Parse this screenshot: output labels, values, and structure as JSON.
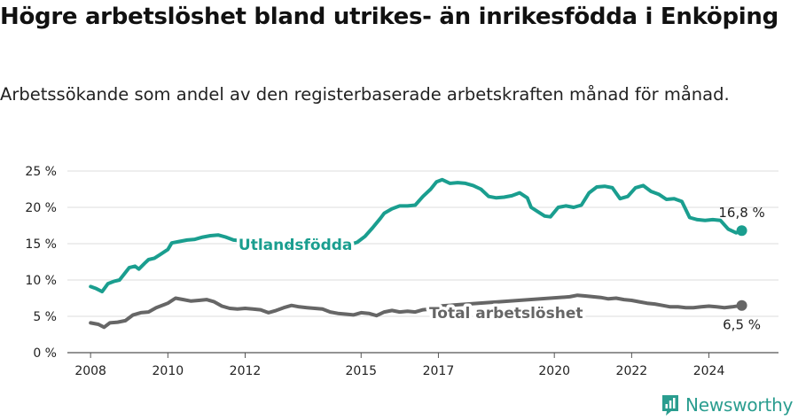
{
  "header": {
    "title": "Högre arbetslöshet bland utrikes- än inrikesfödda i Enköping",
    "subtitle": "Arbetssökande som andel av den registerbaserade arbetskraften månad för månad."
  },
  "brand": {
    "name": "Newsworthy",
    "color": "#2a9d8f"
  },
  "chart_data": {
    "type": "line",
    "title": "Högre arbetslöshet bland utrikes- än inrikesfödda i Enköping",
    "subtitle": "Arbetssökande som andel av den registerbaserade arbetskraften månad för månad.",
    "xlabel": "",
    "ylabel": "",
    "x_range": [
      2007.4,
      2025.8
    ],
    "ylim": [
      0,
      25
    ],
    "y_ticks": [
      0,
      5,
      10,
      15,
      20,
      25
    ],
    "y_tick_labels": [
      "0 %",
      "5 %",
      "10 %",
      "15 %",
      "20 %",
      "25 %"
    ],
    "x_ticks": [
      2008,
      2010,
      2012,
      2015,
      2017,
      2020,
      2022,
      2024
    ],
    "x_tick_labels": [
      "2008",
      "2010",
      "2012",
      "2015",
      "2017",
      "2020",
      "2022",
      "2024"
    ],
    "grid": "horizontal",
    "legend": "inline labels",
    "series": [
      {
        "name": "Utlandsfödda",
        "color": "#1a9e8f",
        "end_label": "16,8 %",
        "x": [
          2008.0,
          2008.15,
          2008.3,
          2008.45,
          2008.6,
          2008.75,
          2009.0,
          2009.15,
          2009.25,
          2009.4,
          2009.5,
          2009.65,
          2009.8,
          2010.0,
          2010.1,
          2010.3,
          2010.5,
          2010.7,
          2010.9,
          2011.1,
          2011.3,
          2011.5,
          2011.7,
          2011.9,
          2012.1,
          2012.3,
          2012.5,
          2014.2,
          2014.45,
          2014.9,
          2015.1,
          2015.3,
          2015.5,
          2015.6,
          2015.8,
          2016.0,
          2016.2,
          2016.4,
          2016.6,
          2016.8,
          2016.95,
          2017.1,
          2017.3,
          2017.5,
          2017.7,
          2017.9,
          2018.1,
          2018.3,
          2018.5,
          2018.7,
          2018.9,
          2019.1,
          2019.3,
          2019.4,
          2019.6,
          2019.75,
          2019.9,
          2020.1,
          2020.3,
          2020.5,
          2020.7,
          2020.9,
          2021.1,
          2021.3,
          2021.5,
          2021.7,
          2021.9,
          2022.1,
          2022.3,
          2022.5,
          2022.7,
          2022.9,
          2023.1,
          2023.3,
          2023.5,
          2023.7,
          2023.9,
          2024.1,
          2024.3,
          2024.5,
          2024.7,
          2024.85
        ],
        "y": [
          9.1,
          8.8,
          8.4,
          9.5,
          9.8,
          10.0,
          11.7,
          11.9,
          11.5,
          12.3,
          12.8,
          13.0,
          13.5,
          14.2,
          15.1,
          15.3,
          15.5,
          15.6,
          15.9,
          16.1,
          16.2,
          15.9,
          15.5,
          15.4,
          15.3,
          15.1,
          15.2,
          14.2,
          14.4,
          15.2,
          16.0,
          17.2,
          18.5,
          19.2,
          19.8,
          20.2,
          20.2,
          20.3,
          21.5,
          22.5,
          23.5,
          23.8,
          23.3,
          23.4,
          23.3,
          23.0,
          22.5,
          21.5,
          21.3,
          21.4,
          21.6,
          22.0,
          21.3,
          20.0,
          19.3,
          18.8,
          18.7,
          20.0,
          20.2,
          20.0,
          20.3,
          22.0,
          22.8,
          22.9,
          22.7,
          21.2,
          21.5,
          22.7,
          23.0,
          22.2,
          21.8,
          21.1,
          21.2,
          20.8,
          18.6,
          18.3,
          18.2,
          18.3,
          18.2,
          17.0,
          16.5,
          16.8
        ]
      },
      {
        "name": "Total arbetslöshet",
        "color": "#666666",
        "end_label": "6,5 %",
        "x": [
          2008.0,
          2008.2,
          2008.35,
          2008.5,
          2008.7,
          2008.9,
          2009.1,
          2009.3,
          2009.5,
          2009.7,
          2009.9,
          2010.0,
          2010.2,
          2010.4,
          2010.6,
          2010.8,
          2011.0,
          2011.2,
          2011.4,
          2011.6,
          2011.8,
          2012.0,
          2012.2,
          2012.4,
          2012.6,
          2012.8,
          2013.0,
          2013.2,
          2013.4,
          2013.6,
          2013.8,
          2014.0,
          2014.2,
          2014.4,
          2014.6,
          2014.8,
          2015.0,
          2015.2,
          2015.4,
          2015.6,
          2015.8,
          2016.0,
          2016.2,
          2016.4,
          2016.6,
          2016.8,
          2017.0,
          2020.4,
          2020.6,
          2020.8,
          2021.0,
          2021.2,
          2021.4,
          2021.6,
          2021.8,
          2022.0,
          2022.2,
          2022.4,
          2022.6,
          2022.8,
          2023.0,
          2023.2,
          2023.4,
          2023.6,
          2023.8,
          2024.0,
          2024.2,
          2024.4,
          2024.6,
          2024.85
        ],
        "y": [
          4.1,
          3.9,
          3.5,
          4.1,
          4.2,
          4.4,
          5.2,
          5.5,
          5.6,
          6.2,
          6.6,
          6.8,
          7.5,
          7.3,
          7.1,
          7.2,
          7.3,
          7.0,
          6.4,
          6.1,
          6.0,
          6.1,
          6.0,
          5.9,
          5.5,
          5.8,
          6.2,
          6.5,
          6.3,
          6.2,
          6.1,
          6.0,
          5.6,
          5.4,
          5.3,
          5.2,
          5.5,
          5.4,
          5.1,
          5.6,
          5.8,
          5.6,
          5.7,
          5.6,
          5.9,
          6.0,
          6.4,
          7.7,
          7.9,
          7.8,
          7.7,
          7.6,
          7.4,
          7.5,
          7.3,
          7.2,
          7.0,
          6.8,
          6.7,
          6.5,
          6.3,
          6.3,
          6.2,
          6.2,
          6.3,
          6.4,
          6.3,
          6.2,
          6.3,
          6.5
        ]
      }
    ],
    "labels": [
      {
        "text": "Utlandsfödda",
        "series": 0,
        "x": 2013.3,
        "y": 14.9
      },
      {
        "text": "Total arbetslöshet",
        "series": 1,
        "x": 2018.75,
        "y": 5.5
      }
    ]
  }
}
